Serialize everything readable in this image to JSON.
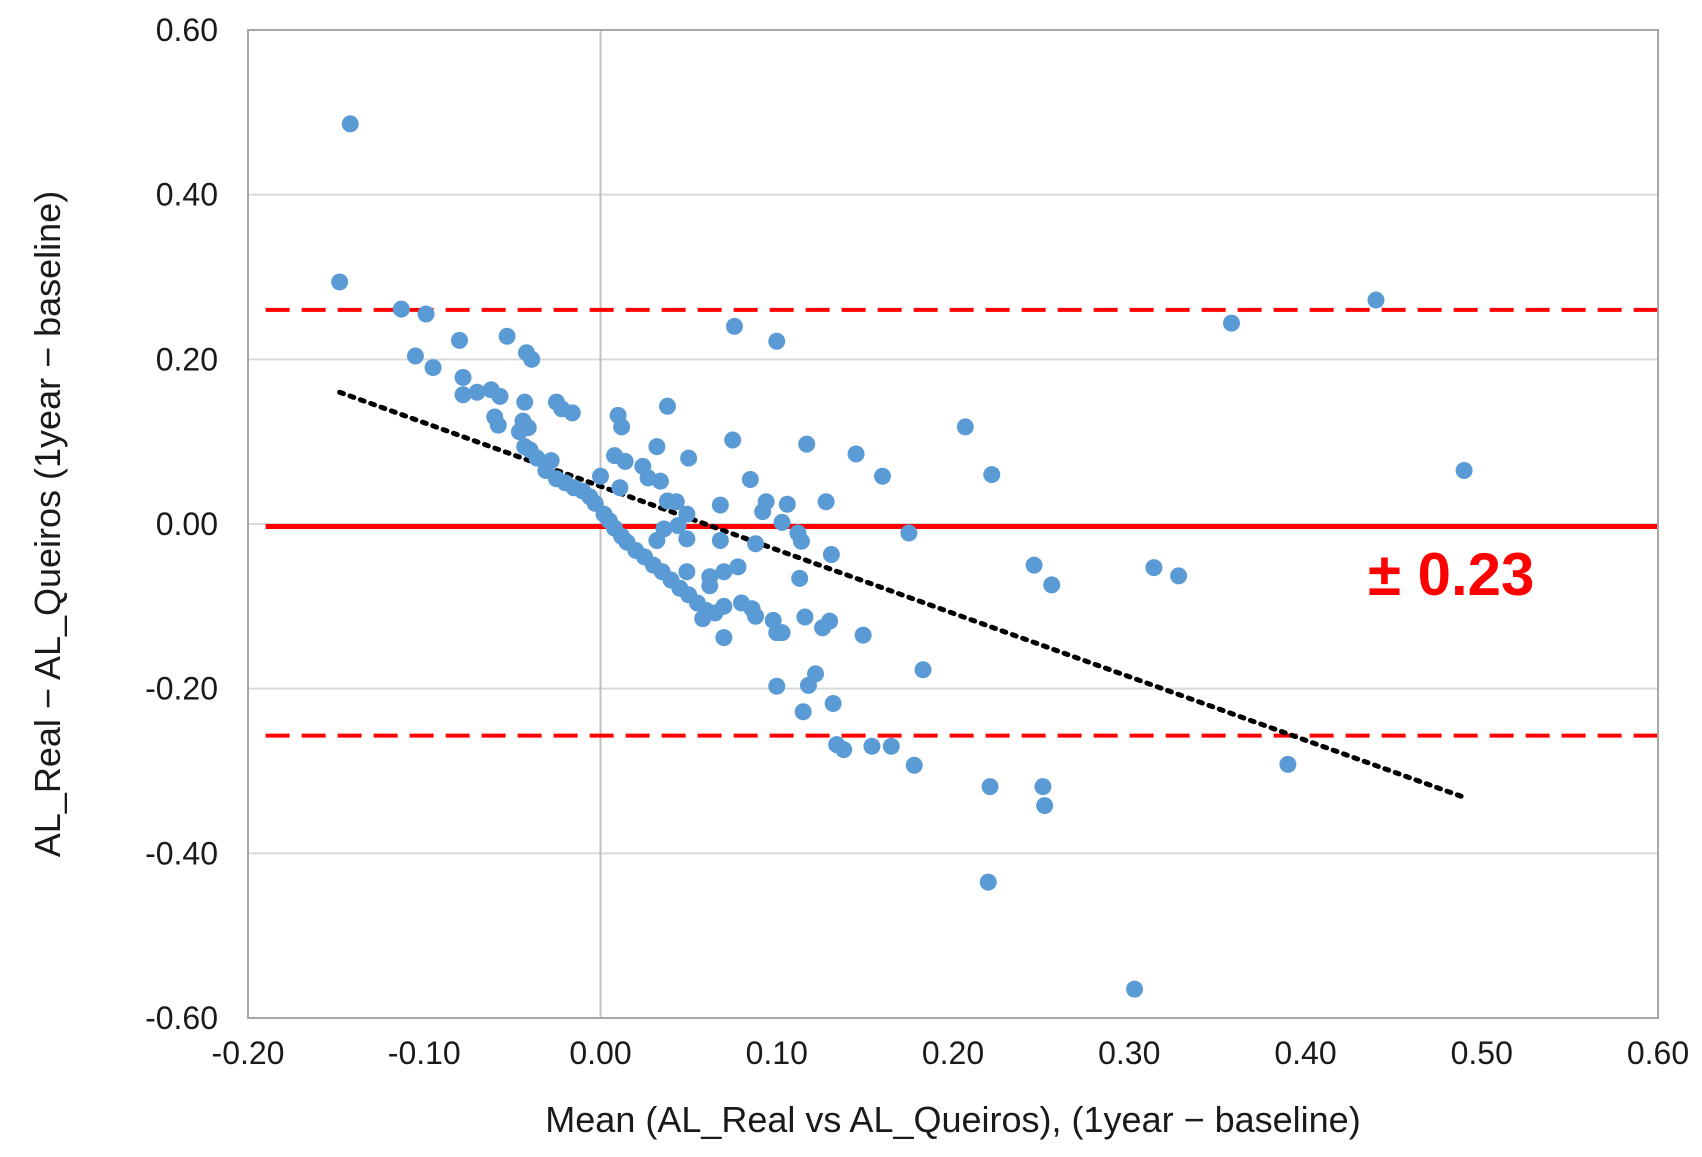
{
  "chart_data": {
    "type": "scatter",
    "title": "",
    "xlabel": "Mean (AL_Real vs AL_Queiros), (1year − baseline)",
    "ylabel": "AL_Real − AL_Queiros  (1year − baseline)",
    "xlim": [
      -0.2,
      0.6
    ],
    "ylim": [
      -0.6,
      0.6
    ],
    "xticks": [
      -0.2,
      -0.1,
      0.0,
      0.1,
      0.2,
      0.3,
      0.4,
      0.5,
      0.6
    ],
    "xtick_labels": [
      "-0.20",
      "-0.10",
      "0.00",
      "0.10",
      "0.20",
      "0.30",
      "0.40",
      "0.50",
      "0.60"
    ],
    "yticks": [
      0.6,
      0.4,
      0.2,
      0.0,
      -0.2,
      -0.4,
      -0.6
    ],
    "ytick_labels": [
      "0.60",
      "0.40",
      "0.20",
      "0.00",
      "-0.20",
      "-0.40",
      "-0.60"
    ],
    "grid": true,
    "colors": {
      "points": "#5b9bd5",
      "limits": "#ff0000",
      "trend": "#000000",
      "grid": "#d9d9d9",
      "frame": "#a6a6a6",
      "zero_vertical": "#bfbfbf"
    },
    "mean_line": {
      "y": -0.003,
      "x_range": [
        -0.19,
        0.6
      ]
    },
    "limits_of_agreement": {
      "upper": 0.26,
      "lower": -0.257,
      "x_range": [
        -0.19,
        0.6
      ]
    },
    "trend_line": {
      "x1": -0.148,
      "y1": 0.16,
      "x2": 0.49,
      "y2": -0.332
    },
    "annotation_text": "± 0.23",
    "points": [
      [
        -0.142,
        0.486
      ],
      [
        -0.148,
        0.294
      ],
      [
        -0.113,
        0.261
      ],
      [
        -0.099,
        0.255
      ],
      [
        -0.08,
        0.223
      ],
      [
        -0.053,
        0.228
      ],
      [
        -0.042,
        0.208
      ],
      [
        -0.039,
        0.2
      ],
      [
        -0.105,
        0.204
      ],
      [
        -0.095,
        0.19
      ],
      [
        -0.078,
        0.178
      ],
      [
        -0.07,
        0.16
      ],
      [
        -0.062,
        0.163
      ],
      [
        -0.057,
        0.155
      ],
      [
        -0.078,
        0.157
      ],
      [
        -0.043,
        0.148
      ],
      [
        -0.025,
        0.148
      ],
      [
        -0.022,
        0.14
      ],
      [
        -0.016,
        0.135
      ],
      [
        -0.06,
        0.13
      ],
      [
        -0.058,
        0.12
      ],
      [
        -0.044,
        0.125
      ],
      [
        -0.041,
        0.117
      ],
      [
        -0.046,
        0.112
      ],
      [
        -0.04,
        0.09
      ],
      [
        -0.043,
        0.094
      ],
      [
        -0.036,
        0.08
      ],
      [
        -0.028,
        0.077
      ],
      [
        -0.031,
        0.065
      ],
      [
        -0.025,
        0.055
      ],
      [
        -0.02,
        0.05
      ],
      [
        -0.015,
        0.044
      ],
      [
        -0.01,
        0.04
      ],
      [
        -0.006,
        0.033
      ],
      [
        -0.003,
        0.025
      ],
      [
        0.0,
        0.058
      ],
      [
        0.002,
        0.012
      ],
      [
        0.005,
        0.004
      ],
      [
        0.008,
        -0.005
      ],
      [
        0.012,
        -0.015
      ],
      [
        0.015,
        -0.022
      ],
      [
        0.02,
        -0.032
      ],
      [
        0.025,
        -0.04
      ],
      [
        0.03,
        -0.05
      ],
      [
        0.035,
        -0.058
      ],
      [
        0.04,
        -0.068
      ],
      [
        0.045,
        -0.078
      ],
      [
        0.05,
        -0.086
      ],
      [
        0.055,
        -0.096
      ],
      [
        0.06,
        -0.105
      ],
      [
        0.058,
        -0.115
      ],
      [
        0.065,
        -0.108
      ],
      [
        0.07,
        -0.1
      ],
      [
        0.01,
        0.132
      ],
      [
        0.012,
        0.118
      ],
      [
        0.038,
        0.143
      ],
      [
        0.008,
        0.083
      ],
      [
        0.014,
        0.076
      ],
      [
        0.032,
        0.094
      ],
      [
        0.05,
        0.08
      ],
      [
        0.024,
        0.07
      ],
      [
        0.027,
        0.056
      ],
      [
        0.034,
        0.052
      ],
      [
        0.011,
        0.044
      ],
      [
        0.038,
        0.028
      ],
      [
        0.043,
        0.027
      ],
      [
        0.049,
        0.012
      ],
      [
        0.044,
        -0.002
      ],
      [
        0.036,
        -0.006
      ],
      [
        0.032,
        -0.02
      ],
      [
        0.049,
        -0.018
      ],
      [
        0.049,
        -0.058
      ],
      [
        0.062,
        -0.064
      ],
      [
        0.07,
        -0.058
      ],
      [
        0.078,
        -0.052
      ],
      [
        0.062,
        -0.075
      ],
      [
        0.08,
        -0.096
      ],
      [
        0.086,
        -0.103
      ],
      [
        0.088,
        -0.112
      ],
      [
        0.098,
        -0.117
      ],
      [
        0.068,
        -0.02
      ],
      [
        0.068,
        0.023
      ],
      [
        0.088,
        -0.024
      ],
      [
        0.075,
        0.102
      ],
      [
        0.076,
        0.24
      ],
      [
        0.1,
        0.222
      ],
      [
        0.085,
        0.054
      ],
      [
        0.094,
        0.027
      ],
      [
        0.092,
        0.015
      ],
      [
        0.106,
        0.024
      ],
      [
        0.103,
        0.002
      ],
      [
        0.112,
        -0.011
      ],
      [
        0.114,
        -0.021
      ],
      [
        0.117,
        0.097
      ],
      [
        0.113,
        -0.066
      ],
      [
        0.128,
        0.027
      ],
      [
        0.131,
        -0.037
      ],
      [
        0.145,
        0.085
      ],
      [
        0.16,
        0.058
      ],
      [
        0.175,
        -0.011
      ],
      [
        0.07,
        -0.138
      ],
      [
        0.1,
        -0.132
      ],
      [
        0.103,
        -0.132
      ],
      [
        0.116,
        -0.113
      ],
      [
        0.126,
        -0.126
      ],
      [
        0.13,
        -0.118
      ],
      [
        0.149,
        -0.135
      ],
      [
        0.1,
        -0.197
      ],
      [
        0.118,
        -0.196
      ],
      [
        0.122,
        -0.182
      ],
      [
        0.115,
        -0.228
      ],
      [
        0.132,
        -0.218
      ],
      [
        0.134,
        -0.268
      ],
      [
        0.138,
        -0.274
      ],
      [
        0.154,
        -0.27
      ],
      [
        0.165,
        -0.27
      ],
      [
        0.178,
        -0.293
      ],
      [
        0.183,
        -0.177
      ],
      [
        0.207,
        0.118
      ],
      [
        0.222,
        0.06
      ],
      [
        0.221,
        -0.319
      ],
      [
        0.246,
        -0.05
      ],
      [
        0.256,
        -0.074
      ],
      [
        0.251,
        -0.319
      ],
      [
        0.252,
        -0.342
      ],
      [
        0.22,
        -0.435
      ],
      [
        0.303,
        -0.565
      ],
      [
        0.314,
        -0.053
      ],
      [
        0.328,
        -0.063
      ],
      [
        0.358,
        0.244
      ],
      [
        0.39,
        -0.292
      ],
      [
        0.44,
        0.272
      ],
      [
        0.49,
        0.065
      ]
    ]
  }
}
